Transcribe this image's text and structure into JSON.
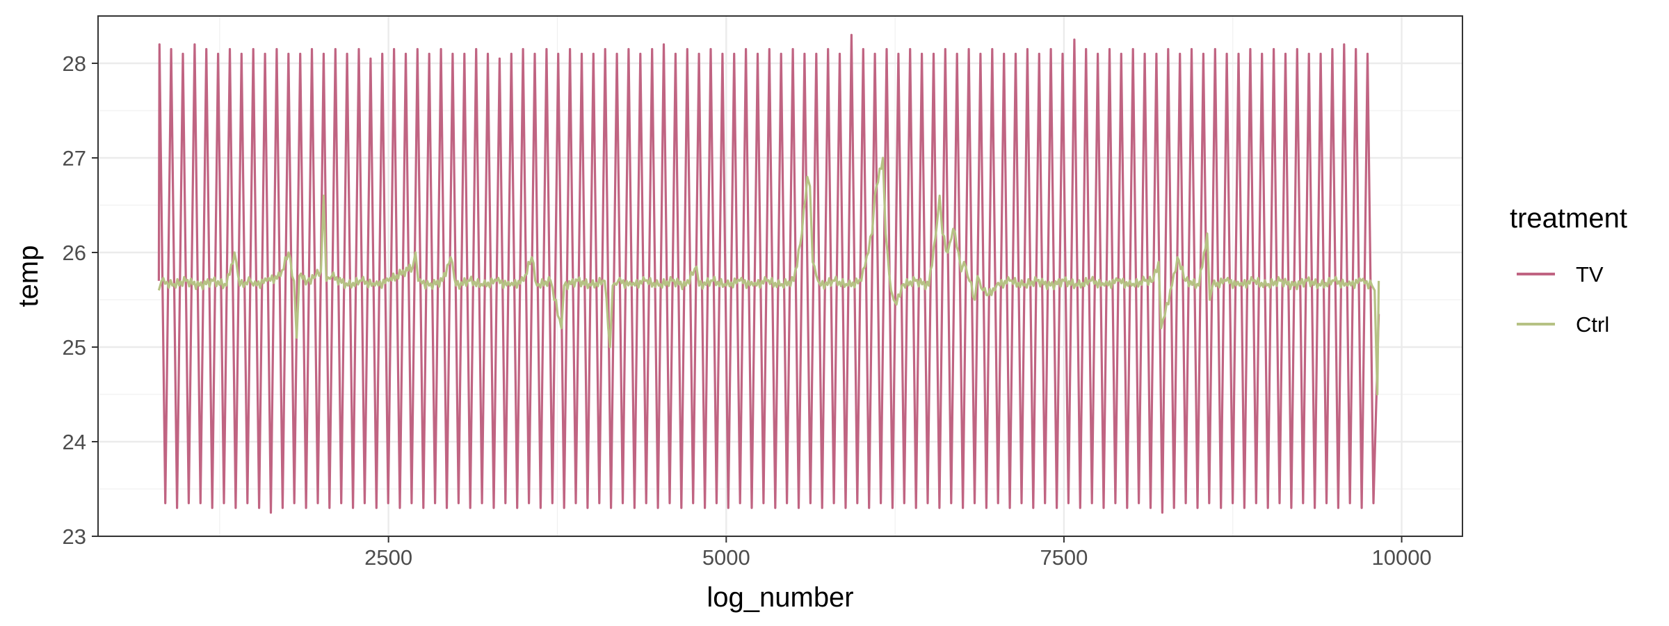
{
  "chart_data": {
    "type": "line",
    "title": "",
    "xlabel": "log_number",
    "ylabel": "temp",
    "xlim": [
      350,
      10450
    ],
    "ylim": [
      23,
      28.5
    ],
    "x_ticks": [
      2500,
      5000,
      7500,
      10000
    ],
    "x_tick_labels": [
      "2500",
      "5000",
      "7500",
      "10000"
    ],
    "y_ticks": [
      23,
      24,
      25,
      26,
      27,
      28
    ],
    "y_tick_labels": [
      "23",
      "24",
      "25",
      "26",
      "27",
      "28"
    ],
    "grid": true,
    "legend": {
      "title": "treatment",
      "position": "right",
      "entries": [
        "TV",
        "Ctrl"
      ]
    },
    "series": [
      {
        "name": "TV",
        "color": "#c06482",
        "x_range": [
          800,
          9830
        ],
        "cycles": 104,
        "start_value": 25.7,
        "end_value": 25.35,
        "peak_values": [
          28.2,
          28.15,
          28.1,
          28.2,
          28.15,
          28.1,
          28.15,
          28.1,
          28.15,
          28.1,
          28.15,
          28.1,
          28.1,
          28.15,
          28.1,
          28.15,
          28.1,
          28.15,
          28.05,
          28.1,
          28.15,
          28.1,
          28.15,
          28.1,
          28.15,
          28.1,
          28.1,
          28.15,
          28.1,
          28.05,
          28.1,
          28.15,
          28.1,
          28.15,
          28.1,
          28.15,
          28.1,
          28.1,
          28.15,
          28.1,
          28.15,
          28.1,
          28.15,
          28.2,
          28.1,
          28.15,
          28.1,
          28.15,
          28.1,
          28.1,
          28.15,
          28.1,
          28.15,
          28.1,
          28.15,
          28.1,
          28.1,
          28.15,
          28.1,
          28.3,
          28.15,
          28.1,
          28.15,
          28.1,
          28.15,
          28.1,
          28.1,
          28.15,
          28.1,
          28.15,
          28.1,
          28.15,
          28.1,
          28.1,
          28.15,
          28.1,
          28.15,
          28.1,
          28.25,
          28.15,
          28.1,
          28.15,
          28.1,
          28.15,
          28.1,
          28.1,
          28.15,
          28.1,
          28.15,
          28.1,
          28.15,
          28.1,
          28.1,
          28.15,
          28.1,
          28.15,
          28.1,
          28.15,
          28.1,
          28.1,
          28.15,
          28.2,
          28.15,
          28.1
        ],
        "trough_values": [
          23.35,
          23.3,
          23.35,
          23.35,
          23.3,
          23.35,
          23.3,
          23.35,
          23.3,
          23.25,
          23.3,
          23.35,
          23.3,
          23.35,
          23.3,
          23.35,
          23.3,
          23.35,
          23.3,
          23.35,
          23.3,
          23.35,
          23.3,
          23.35,
          23.3,
          23.35,
          23.3,
          23.35,
          23.3,
          23.35,
          23.3,
          23.35,
          23.3,
          23.35,
          23.3,
          23.35,
          23.3,
          23.35,
          23.3,
          23.35,
          23.3,
          23.35,
          23.3,
          23.35,
          23.3,
          23.35,
          23.3,
          23.35,
          23.3,
          23.35,
          23.3,
          23.35,
          23.3,
          23.35,
          23.3,
          23.35,
          23.3,
          23.35,
          23.3,
          23.35,
          23.3,
          23.35,
          23.3,
          23.35,
          23.3,
          23.35,
          23.3,
          23.35,
          23.3,
          23.35,
          23.3,
          23.35,
          23.3,
          23.35,
          23.3,
          23.35,
          23.3,
          23.35,
          23.3,
          23.35,
          23.3,
          23.35,
          23.3,
          23.35,
          23.3,
          23.25,
          23.3,
          23.35,
          23.3,
          23.35,
          23.3,
          23.35,
          23.3,
          23.35,
          23.3,
          23.35,
          23.3,
          23.35,
          23.3,
          23.35,
          23.3,
          23.35,
          23.3,
          23.35
        ]
      },
      {
        "name": "Ctrl",
        "color": "#b6c284",
        "baseline": 25.65,
        "x_range": [
          800,
          9830
        ],
        "x": [
          800,
          820,
          900,
          1000,
          1100,
          1200,
          1300,
          1360,
          1400,
          1480,
          1500,
          1600,
          1700,
          1760,
          1800,
          1820,
          1840,
          1900,
          1960,
          2000,
          2020,
          2040,
          2080,
          2200,
          2300,
          2400,
          2500,
          2680,
          2700,
          2720,
          2800,
          2900,
          2960,
          3000,
          3100,
          3200,
          3300,
          3400,
          3500,
          3560,
          3600,
          3700,
          3780,
          3800,
          3900,
          4000,
          4100,
          4140,
          4160,
          4200,
          4300,
          4400,
          4500,
          4600,
          4700,
          4780,
          4800,
          4900,
          5000,
          5100,
          5200,
          5300,
          5400,
          5500,
          5560,
          5600,
          5620,
          5640,
          5680,
          5700,
          5800,
          5900,
          6000,
          6080,
          6100,
          6160,
          6180,
          6220,
          6240,
          6260,
          6300,
          6400,
          6500,
          6560,
          6580,
          6600,
          6640,
          6680,
          6720,
          6740,
          6760,
          6800,
          6840,
          6860,
          6900,
          6940,
          7000,
          7100,
          7200,
          7300,
          7400,
          7500,
          7600,
          7700,
          7800,
          7900,
          8000,
          8100,
          8160,
          8200,
          8220,
          8300,
          8340,
          8400,
          8500,
          8560,
          8580,
          8600,
          8700,
          8800,
          8900,
          9000,
          9100,
          9200,
          9300,
          9400,
          9500,
          9600,
          9700,
          9780,
          9800,
          9820,
          9830
        ],
        "values": [
          25.6,
          25.7,
          25.65,
          25.7,
          25.65,
          25.7,
          25.65,
          26.0,
          25.65,
          25.7,
          25.65,
          25.7,
          25.75,
          26.0,
          25.7,
          25.1,
          25.75,
          25.7,
          25.75,
          25.8,
          26.6,
          25.7,
          25.75,
          25.65,
          25.7,
          25.65,
          25.7,
          25.85,
          26.0,
          25.7,
          25.65,
          25.7,
          25.95,
          25.65,
          25.7,
          25.65,
          25.7,
          25.65,
          25.7,
          25.95,
          25.65,
          25.7,
          25.2,
          25.65,
          25.7,
          25.65,
          25.7,
          25.0,
          25.65,
          25.7,
          25.65,
          25.7,
          25.65,
          25.7,
          25.65,
          25.85,
          25.65,
          25.7,
          25.65,
          25.7,
          25.65,
          25.7,
          25.65,
          25.7,
          26.2,
          26.8,
          26.7,
          25.9,
          25.7,
          25.65,
          25.7,
          25.65,
          25.7,
          26.2,
          26.6,
          27.0,
          26.2,
          25.6,
          25.5,
          25.45,
          25.65,
          25.7,
          25.65,
          26.3,
          26.6,
          26.2,
          26.0,
          26.25,
          26.0,
          25.8,
          25.9,
          25.7,
          25.5,
          25.75,
          25.6,
          25.55,
          25.65,
          25.7,
          25.65,
          25.7,
          25.65,
          25.7,
          25.65,
          25.7,
          25.65,
          25.7,
          25.65,
          25.7,
          25.7,
          25.9,
          25.2,
          25.65,
          25.95,
          25.7,
          25.65,
          26.2,
          25.5,
          25.65,
          25.7,
          25.65,
          25.7,
          25.65,
          25.7,
          25.65,
          25.7,
          25.65,
          25.7,
          25.65,
          25.7,
          25.65,
          25.6,
          24.5,
          25.7
        ]
      }
    ]
  }
}
